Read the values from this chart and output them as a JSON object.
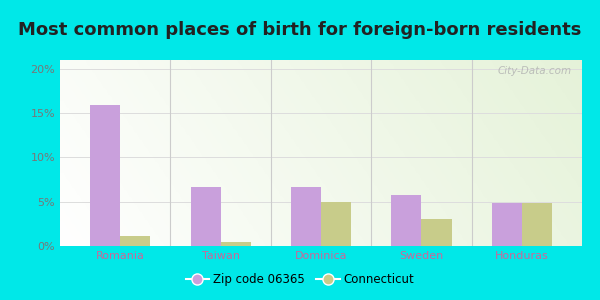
{
  "title": "Most common places of birth for foreign-born residents",
  "categories": [
    "Romania",
    "Taiwan",
    "Dominica",
    "Sweden",
    "Honduras"
  ],
  "zip_values": [
    15.9,
    6.7,
    6.7,
    5.8,
    4.8
  ],
  "ct_values": [
    1.1,
    0.5,
    5.0,
    3.0,
    4.8
  ],
  "zip_color": "#c9a0dc",
  "ct_color": "#c8cc8a",
  "background_outer": "#00e8e8",
  "ylim": [
    0,
    21
  ],
  "yticks": [
    0,
    5,
    10,
    15,
    20
  ],
  "ytick_labels": [
    "0%",
    "5%",
    "10%",
    "15%",
    "20%"
  ],
  "legend_zip": "Zip code 06365",
  "legend_ct": "Connecticut",
  "bar_width": 0.3,
  "title_fontsize": 13,
  "watermark": "City-Data.com",
  "xticklabel_color": "#cc6699",
  "yticklabel_color": "#777777",
  "grid_color": "#dddddd",
  "divider_color": "#cccccc"
}
